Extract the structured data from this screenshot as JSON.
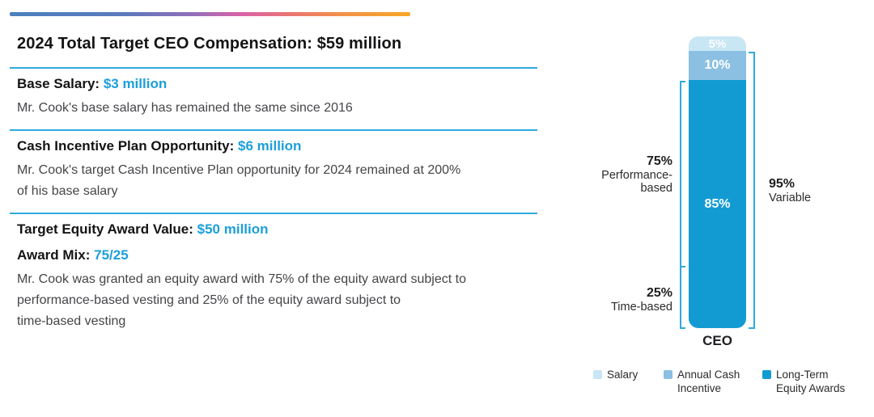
{
  "header": {
    "title": "2024 Total Target CEO Compensation: $59 million"
  },
  "sections": [
    {
      "rows": [
        {
          "label": "Base Salary:",
          "value": "$3 million"
        }
      ],
      "body_lines": [
        "Mr. Cook's base salary has remained the same since 2016"
      ]
    },
    {
      "rows": [
        {
          "label": "Cash Incentive Plan Opportunity:",
          "value": "$6 million"
        }
      ],
      "body_lines": [
        "Mr. Cook's target Cash Incentive Plan opportunity for 2024 remained at 200%",
        "of his base salary"
      ]
    },
    {
      "rows": [
        {
          "label": "Target Equity Award Value:",
          "value": "$50 million"
        },
        {
          "label": "Award Mix:",
          "value": "75/25"
        }
      ],
      "body_lines": [
        "Mr. Cook was granted an equity award with 75% of the equity award subject to",
        "performance-based vesting and 25% of the equity award subject to",
        "time-based vesting"
      ]
    }
  ],
  "chart_data": {
    "type": "bar",
    "stacked": true,
    "categories": [
      "CEO"
    ],
    "series": [
      {
        "name": "Salary",
        "values": [
          5
        ],
        "color": "#C9E6F5",
        "segment_label": "5%"
      },
      {
        "name": "Annual Cash Incentive",
        "values": [
          10
        ],
        "color": "#8BC0E2",
        "segment_label": "10%"
      },
      {
        "name": "Long-Term Equity Awards",
        "values": [
          85
        ],
        "color": "#129BD2",
        "segment_label": "85%"
      }
    ],
    "ylim": [
      0,
      100
    ],
    "legend_position": "bottom",
    "annotations": [
      {
        "side": "left",
        "pct": "75%",
        "text": "Performance-based",
        "covers": "top 75% of Long-Term Equity Awards segment"
      },
      {
        "side": "left",
        "pct": "25%",
        "text": "Time-based",
        "covers": "bottom 25% of Long-Term Equity Awards segment"
      },
      {
        "side": "right",
        "pct": "95%",
        "text": "Variable",
        "covers": "Annual Cash Incentive + Long-Term Equity Awards segments"
      }
    ]
  },
  "colors": {
    "accent_line": "#2FA9DD",
    "value_text": "#1C9FD9",
    "bar_light": "#C9E6F5",
    "bar_mid": "#8BC0E2",
    "bar_dark": "#129BD2"
  }
}
